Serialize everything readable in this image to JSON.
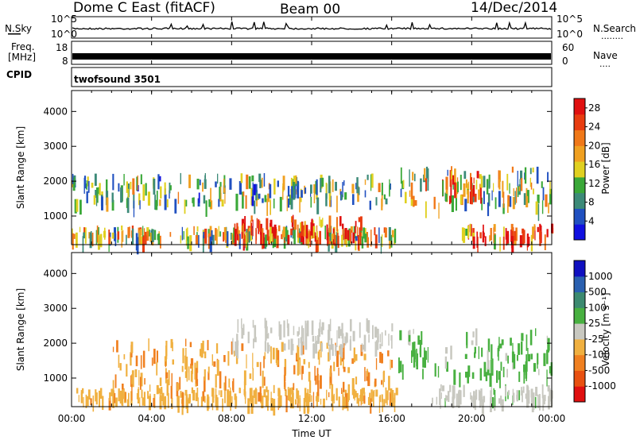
{
  "header": {
    "title": "Dome C East (fitACF)",
    "beam": "Beam 00",
    "date": "14/Dec/2014"
  },
  "nsky_panel": {
    "label": "N.Sky",
    "y_ticks": [
      "10^5",
      "10^0"
    ],
    "right_ticks": [
      "10^5",
      "10^0"
    ],
    "right_label": "N.Search",
    "right_dots": "........"
  },
  "freq_panel": {
    "label_line1": "Freq.",
    "label_line2": "[MHz]",
    "y_ticks": [
      "18",
      "8"
    ],
    "right_ticks": [
      "60",
      "0"
    ],
    "right_label": "Nave",
    "right_dots": "....",
    "cpid_label": "CPID",
    "cpid_value": "twofsound 3501"
  },
  "x_axis": {
    "ticks": [
      "00:00",
      "04:00",
      "08:00",
      "12:00",
      "16:00",
      "20:00",
      "00:00"
    ],
    "label": "Time UT"
  },
  "colors": {
    "power": [
      "#1010e0",
      "#2050c0",
      "#3c8a78",
      "#3aa838",
      "#e0d020",
      "#f0a020",
      "#f07818",
      "#e83c10",
      "#e01010"
    ],
    "velocity": [
      "#1010c0",
      "#2a60b0",
      "#3c8a70",
      "#48b040",
      "#c8c8c0",
      "#f0b040",
      "#f08020",
      "#e85010",
      "#e01010"
    ]
  },
  "chart_data": [
    {
      "type": "heatmap",
      "panel": "power",
      "ylabel": "Slant Range [km]",
      "y_ticks": [
        1000,
        2000,
        3000,
        4000
      ],
      "ylim": [
        180,
        4600
      ],
      "xlim": [
        "00:00",
        "24:00"
      ],
      "colorbar": {
        "label": "Power [dB]",
        "ticks": [
          "4",
          "8",
          "12",
          "16",
          "20",
          "24",
          "28"
        ],
        "range": [
          0,
          30
        ]
      },
      "echo_bands": [
        {
          "t_start": 0.0,
          "t_end": 16.2,
          "range_km": [
            250,
            600
          ],
          "value": 16
        },
        {
          "t_start": 8.0,
          "t_end": 14.5,
          "range_km": [
            300,
            900
          ],
          "value": 26
        },
        {
          "t_start": 0.0,
          "t_end": 16.0,
          "range_km": [
            1300,
            2100
          ],
          "value": 12
        },
        {
          "t_start": 16.3,
          "t_end": 24.0,
          "range_km": [
            1200,
            2300
          ],
          "value": 14
        },
        {
          "t_start": 18.5,
          "t_end": 20.5,
          "range_km": [
            1400,
            2300
          ],
          "value": 22
        },
        {
          "t_start": 19.5,
          "t_end": 24.0,
          "range_km": [
            250,
            650
          ],
          "value": 27
        }
      ]
    },
    {
      "type": "heatmap",
      "panel": "velocity",
      "ylabel": "Slant Range [km]",
      "y_ticks": [
        1000,
        2000,
        3000,
        4000
      ],
      "ylim": [
        180,
        4600
      ],
      "xlim": [
        "00:00",
        "24:00"
      ],
      "colorbar": {
        "label": "Velocity [m s⁻¹]",
        "ticks": [
          "1000",
          "500",
          "100",
          "25",
          "-25",
          "-100",
          "-500",
          "-1000"
        ],
        "range": [
          -1000,
          1000
        ]
      },
      "echo_bands": [
        {
          "t_start": 0.0,
          "t_end": 16.2,
          "range_km": [
            250,
            600
          ],
          "value": -250
        },
        {
          "t_start": 2.0,
          "t_end": 16.0,
          "range_km": [
            600,
            2000
          ],
          "value": -300
        },
        {
          "t_start": 8.0,
          "t_end": 16.0,
          "range_km": [
            1800,
            2600
          ],
          "value": 0
        },
        {
          "t_start": 16.3,
          "t_end": 24.0,
          "range_km": [
            1000,
            2300
          ],
          "value": 150
        },
        {
          "t_start": 18.0,
          "t_end": 24.0,
          "range_km": [
            250,
            700
          ],
          "value": 80
        }
      ]
    }
  ]
}
